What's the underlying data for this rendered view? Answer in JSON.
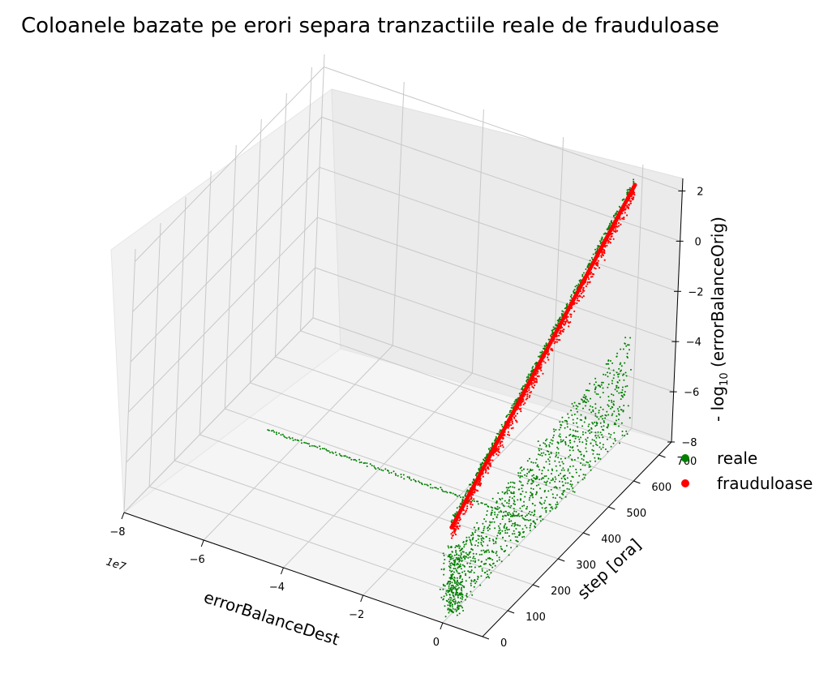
{
  "chart_data": {
    "type": "scatter3d",
    "title": "Coloanele bazate pe erori separa tranzactiile reale de frauduloase",
    "xlabel": "errorBalanceDest",
    "ylabel": "step [ora]",
    "zlabel_prefix": "- log",
    "zlabel_sub": "10",
    "zlabel_suffix": " (errorBalanceOrig)",
    "x_offset_label": "1e7",
    "xlim": [
      -8,
      1
    ],
    "ylim": [
      0,
      750
    ],
    "zlim": [
      -8,
      2.5
    ],
    "x_ticks": [
      "−8",
      "−6",
      "−4",
      "−2",
      "0"
    ],
    "x_tick_values": [
      -8,
      -6,
      -4,
      -2,
      0
    ],
    "y_ticks": [
      "0",
      "100",
      "200",
      "300",
      "400",
      "500",
      "600",
      "700"
    ],
    "y_tick_values": [
      0,
      100,
      200,
      300,
      400,
      500,
      600,
      700
    ],
    "z_ticks": [
      "−8",
      "−6",
      "−4",
      "−2",
      "0",
      "2"
    ],
    "z_tick_values": [
      -8,
      -6,
      -4,
      -2,
      0,
      2
    ],
    "grid": true,
    "legend_position": "right",
    "series": [
      {
        "name": "reale",
        "color": "#008000",
        "clusters": [
          {
            "kind": "vertical-band",
            "x": 0,
            "y_range": [
              20,
              720
            ],
            "z_range": [
              -8,
              -4
            ]
          },
          {
            "kind": "ridge",
            "x": 0,
            "y_range": [
              20,
              720
            ],
            "z_start": -4.4,
            "z_end": 2.0
          },
          {
            "kind": "horizontal-line",
            "x_range": [
              -6.8,
              -0.2
            ],
            "y": 380,
            "z": -8
          }
        ]
      },
      {
        "name": "frauduloase",
        "color": "#ff0000",
        "clusters": [
          {
            "kind": "ridge",
            "x": 0,
            "y_range": [
              20,
              720
            ],
            "z_start": -4.4,
            "z_end": 2.0
          }
        ]
      }
    ]
  }
}
